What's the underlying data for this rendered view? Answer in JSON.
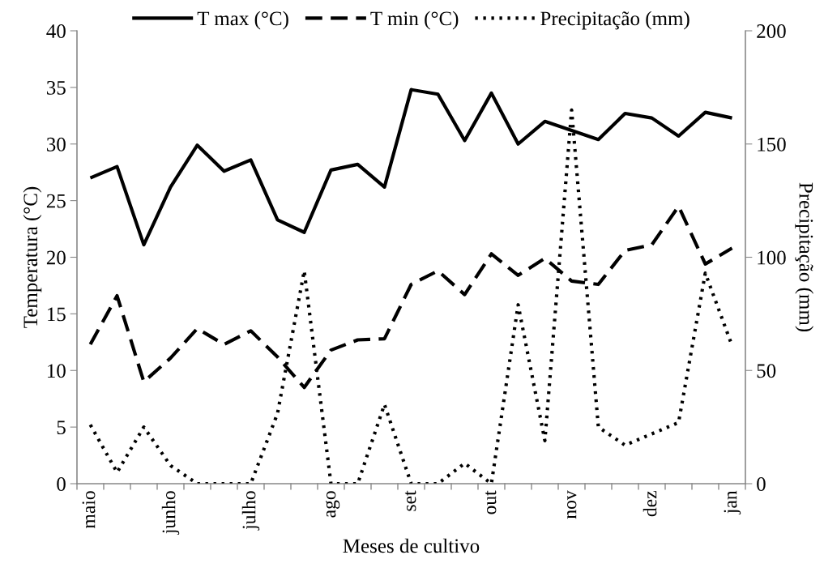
{
  "chart_data": {
    "type": "line",
    "xlabel": "Meses de cultivo",
    "ylabel": "Temperatura (°C)",
    "y2label": "Precipitação (mm)",
    "categories": [
      "maio",
      null,
      null,
      "junho",
      null,
      null,
      "julho",
      null,
      null,
      "ago",
      null,
      null,
      "set",
      null,
      null,
      "out",
      null,
      null,
      "nov",
      null,
      null,
      "dez",
      null,
      null,
      "jan"
    ],
    "series": [
      {
        "name": "T max (°C)",
        "color": "#000000",
        "line_style": "solid",
        "values": [
          27.0,
          28.0,
          21.1,
          26.2,
          29.9,
          27.6,
          28.6,
          23.3,
          22.2,
          27.7,
          28.2,
          26.2,
          34.8,
          34.4,
          30.3,
          34.5,
          30.0,
          32.0,
          31.2,
          30.4,
          32.7,
          32.3,
          30.7,
          32.8,
          32.3
        ]
      },
      {
        "name": "T min (°C)",
        "color": "#000000",
        "line_style": "dashed",
        "values": [
          12.3,
          16.6,
          9.0,
          11.1,
          13.7,
          12.3,
          13.5,
          11.2,
          8.5,
          11.8,
          12.7,
          12.8,
          17.6,
          18.8,
          16.7,
          20.3,
          18.4,
          19.9,
          17.9,
          17.6,
          20.6,
          21.1,
          24.5,
          19.4,
          20.8
        ]
      },
      {
        "name": "Precipitação (mm)",
        "color": "#000000",
        "line_style": "dotted",
        "axis": "y2",
        "values": [
          26,
          5,
          25,
          8,
          0,
          0,
          0,
          31,
          94,
          0,
          0,
          35,
          0,
          0,
          9,
          0,
          79,
          19,
          165,
          25,
          17,
          22,
          27,
          93,
          61
        ]
      }
    ],
    "ylim": [
      0,
      40
    ],
    "yticks": [
      0,
      5,
      10,
      15,
      20,
      25,
      30,
      35,
      40
    ],
    "y2lim": [
      0,
      200
    ],
    "y2ticks": [
      0,
      50,
      100,
      150,
      200
    ],
    "grid": false,
    "legend": "top",
    "marker": "none"
  }
}
